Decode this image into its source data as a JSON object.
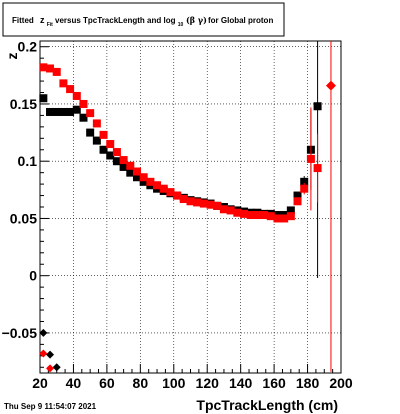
{
  "title": {
    "prefix": "Fitted",
    "z_main": "z",
    "z_sub": "Fit",
    "middle": "versus TpcTrackLength and log",
    "log_sub": "10",
    "beta_gamma": "(β  γ)",
    "suffix": "for Global proton"
  },
  "footer": "Thu Sep  9 11:54:07 2021",
  "chart_data": {
    "type": "scatter",
    "xlabel": "TpcTrackLength (cm)",
    "ylabel": "z",
    "xlim": [
      20,
      200
    ],
    "ylim": [
      -0.085,
      0.205
    ],
    "x_ticks": [
      "20",
      "40",
      "60",
      "80",
      "100",
      "120",
      "140",
      "160",
      "180",
      "200"
    ],
    "y_ticks": [
      {
        "value": -0.05,
        "label": "−0.05"
      },
      {
        "value": 0,
        "label": "0"
      },
      {
        "value": 0.05,
        "label": "0.05"
      },
      {
        "value": 0.1,
        "label": "0.1"
      },
      {
        "value": 0.15,
        "label": "0.15"
      },
      {
        "value": 0.2,
        "label": "0.2"
      }
    ],
    "grid": true,
    "colors": {
      "black": "#000000",
      "red": "#ff0000"
    },
    "series": [
      {
        "color": "black",
        "marker": "square",
        "points": [
          {
            "x": 22,
            "y": 0.155
          },
          {
            "x": 26,
            "y": 0.143
          },
          {
            "x": 30,
            "y": 0.143
          },
          {
            "x": 34,
            "y": 0.143
          },
          {
            "x": 38,
            "y": 0.143
          },
          {
            "x": 42,
            "y": 0.145
          },
          {
            "x": 46,
            "y": 0.138
          },
          {
            "x": 50,
            "y": 0.125
          },
          {
            "x": 54,
            "y": 0.118
          },
          {
            "x": 58,
            "y": 0.11
          },
          {
            "x": 62,
            "y": 0.105
          },
          {
            "x": 66,
            "y": 0.1
          },
          {
            "x": 70,
            "y": 0.095
          },
          {
            "x": 74,
            "y": 0.09
          },
          {
            "x": 78,
            "y": 0.086
          },
          {
            "x": 82,
            "y": 0.082
          },
          {
            "x": 86,
            "y": 0.079
          },
          {
            "x": 90,
            "y": 0.076
          },
          {
            "x": 94,
            "y": 0.074
          },
          {
            "x": 98,
            "y": 0.072
          },
          {
            "x": 102,
            "y": 0.07
          },
          {
            "x": 106,
            "y": 0.068
          },
          {
            "x": 110,
            "y": 0.066
          },
          {
            "x": 114,
            "y": 0.065
          },
          {
            "x": 118,
            "y": 0.064
          },
          {
            "x": 122,
            "y": 0.063
          },
          {
            "x": 126,
            "y": 0.061
          },
          {
            "x": 130,
            "y": 0.06
          },
          {
            "x": 134,
            "y": 0.058
          },
          {
            "x": 138,
            "y": 0.057
          },
          {
            "x": 142,
            "y": 0.056
          },
          {
            "x": 146,
            "y": 0.055
          },
          {
            "x": 150,
            "y": 0.055
          },
          {
            "x": 154,
            "y": 0.054
          },
          {
            "x": 158,
            "y": 0.054
          },
          {
            "x": 162,
            "y": 0.053
          },
          {
            "x": 166,
            "y": 0.053
          },
          {
            "x": 170,
            "y": 0.057
          },
          {
            "x": 174,
            "y": 0.07
          },
          {
            "x": 178,
            "y": 0.082,
            "err": 0.005
          },
          {
            "x": 182,
            "y": 0.11,
            "err": 0.035
          },
          {
            "x": 186,
            "y": 0.148,
            "err": 0.15
          },
          {
            "x": 22,
            "y": -0.05
          },
          {
            "x": 26,
            "y": -0.069
          },
          {
            "x": 30,
            "y": -0.08
          }
        ]
      },
      {
        "color": "red",
        "marker": "square",
        "points": [
          {
            "x": 22,
            "y": 0.182
          },
          {
            "x": 26,
            "y": 0.181
          },
          {
            "x": 30,
            "y": 0.178
          },
          {
            "x": 34,
            "y": 0.168
          },
          {
            "x": 38,
            "y": 0.163
          },
          {
            "x": 42,
            "y": 0.157
          },
          {
            "x": 46,
            "y": 0.15
          },
          {
            "x": 50,
            "y": 0.142
          },
          {
            "x": 54,
            "y": 0.133
          },
          {
            "x": 58,
            "y": 0.123
          },
          {
            "x": 62,
            "y": 0.115
          },
          {
            "x": 66,
            "y": 0.108
          },
          {
            "x": 70,
            "y": 0.101
          },
          {
            "x": 74,
            "y": 0.096
          },
          {
            "x": 78,
            "y": 0.091
          },
          {
            "x": 82,
            "y": 0.086
          },
          {
            "x": 86,
            "y": 0.082
          },
          {
            "x": 90,
            "y": 0.079
          },
          {
            "x": 94,
            "y": 0.076
          },
          {
            "x": 98,
            "y": 0.073
          },
          {
            "x": 102,
            "y": 0.07
          },
          {
            "x": 106,
            "y": 0.067
          },
          {
            "x": 110,
            "y": 0.065
          },
          {
            "x": 114,
            "y": 0.064
          },
          {
            "x": 118,
            "y": 0.063
          },
          {
            "x": 122,
            "y": 0.062
          },
          {
            "x": 126,
            "y": 0.061
          },
          {
            "x": 130,
            "y": 0.058
          },
          {
            "x": 134,
            "y": 0.057
          },
          {
            "x": 138,
            "y": 0.055
          },
          {
            "x": 142,
            "y": 0.054
          },
          {
            "x": 146,
            "y": 0.053
          },
          {
            "x": 150,
            "y": 0.053
          },
          {
            "x": 154,
            "y": 0.053
          },
          {
            "x": 158,
            "y": 0.052
          },
          {
            "x": 162,
            "y": 0.05
          },
          {
            "x": 166,
            "y": 0.05
          },
          {
            "x": 170,
            "y": 0.052
          },
          {
            "x": 174,
            "y": 0.065
          },
          {
            "x": 178,
            "y": 0.076,
            "err": 0.005
          },
          {
            "x": 182,
            "y": 0.102,
            "err": 0.045
          },
          {
            "x": 186,
            "y": 0.094,
            "err": 0.03
          },
          {
            "x": 194,
            "y": 0.166,
            "err": 0.25,
            "marker": "diamond"
          },
          {
            "x": 22,
            "y": -0.068
          },
          {
            "x": 26,
            "y": -0.081
          }
        ]
      }
    ]
  }
}
